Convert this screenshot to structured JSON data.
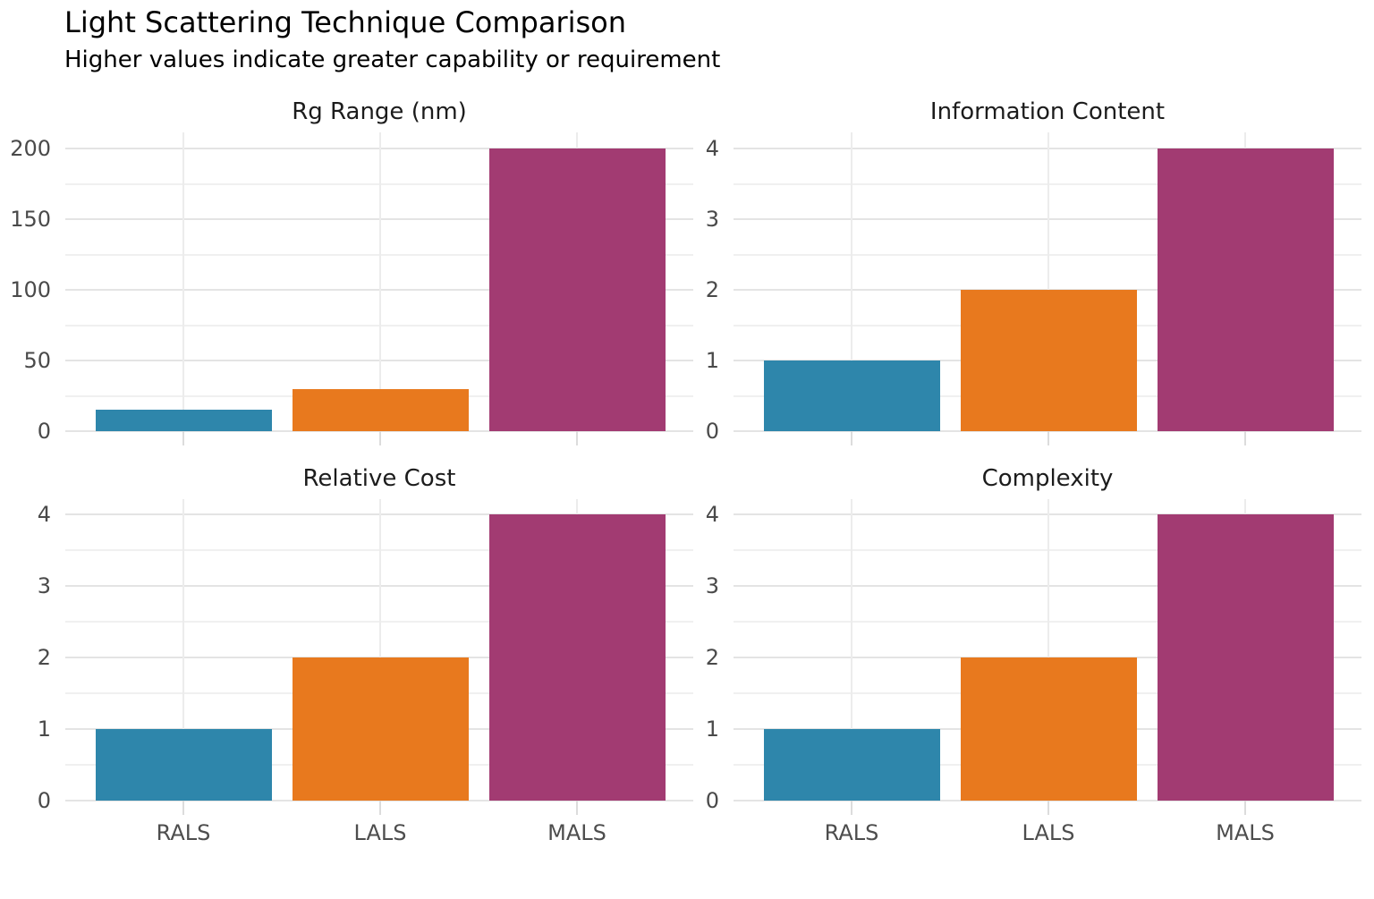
{
  "figure": {
    "title": "Light Scattering Technique Comparison",
    "subtitle": "Higher values indicate greater capability or requirement"
  },
  "categories": [
    "RALS",
    "LALS",
    "MALS"
  ],
  "colors": {
    "rals_bar": "#2E86AB",
    "lals_bar": "#E8791E",
    "mals_bar": "#A23B72",
    "grid_major": "#e4e4e4",
    "grid_minor": "#f0f0f0",
    "tick_label": "#4a4a4a",
    "title_text": "#000000"
  },
  "chart_data": [
    {
      "type": "bar",
      "title": "Rg Range (nm)",
      "categories": [
        "RALS",
        "LALS",
        "MALS"
      ],
      "values": [
        15,
        30,
        200
      ],
      "ylim": [
        0,
        200
      ],
      "yticks": [
        0,
        50,
        100,
        150,
        200
      ],
      "minor_yticks": [
        25,
        75,
        125,
        175
      ],
      "grid": "on",
      "legend": "none",
      "show_x_tick_labels": false,
      "bar_colors": [
        "#2E86AB",
        "#E8791E",
        "#A23B72"
      ]
    },
    {
      "type": "bar",
      "title": "Information Content",
      "categories": [
        "RALS",
        "LALS",
        "MALS"
      ],
      "values": [
        1,
        2,
        4
      ],
      "ylim": [
        0,
        4
      ],
      "yticks": [
        0,
        1,
        2,
        3,
        4
      ],
      "minor_yticks": [
        0.5,
        1.5,
        2.5,
        3.5
      ],
      "grid": "on",
      "legend": "none",
      "show_x_tick_labels": false,
      "bar_colors": [
        "#2E86AB",
        "#E8791E",
        "#A23B72"
      ]
    },
    {
      "type": "bar",
      "title": "Relative Cost",
      "categories": [
        "RALS",
        "LALS",
        "MALS"
      ],
      "values": [
        1,
        2,
        4
      ],
      "ylim": [
        0,
        4
      ],
      "yticks": [
        0,
        1,
        2,
        3,
        4
      ],
      "minor_yticks": [
        0.5,
        1.5,
        2.5,
        3.5
      ],
      "grid": "on",
      "legend": "none",
      "show_x_tick_labels": true,
      "bar_colors": [
        "#2E86AB",
        "#E8791E",
        "#A23B72"
      ]
    },
    {
      "type": "bar",
      "title": "Complexity",
      "categories": [
        "RALS",
        "LALS",
        "MALS"
      ],
      "values": [
        1,
        2,
        4
      ],
      "ylim": [
        0,
        4
      ],
      "yticks": [
        0,
        1,
        2,
        3,
        4
      ],
      "minor_yticks": [
        0.5,
        1.5,
        2.5,
        3.5
      ],
      "grid": "on",
      "legend": "none",
      "show_x_tick_labels": true,
      "bar_colors": [
        "#2E86AB",
        "#E8791E",
        "#A23B72"
      ]
    }
  ]
}
